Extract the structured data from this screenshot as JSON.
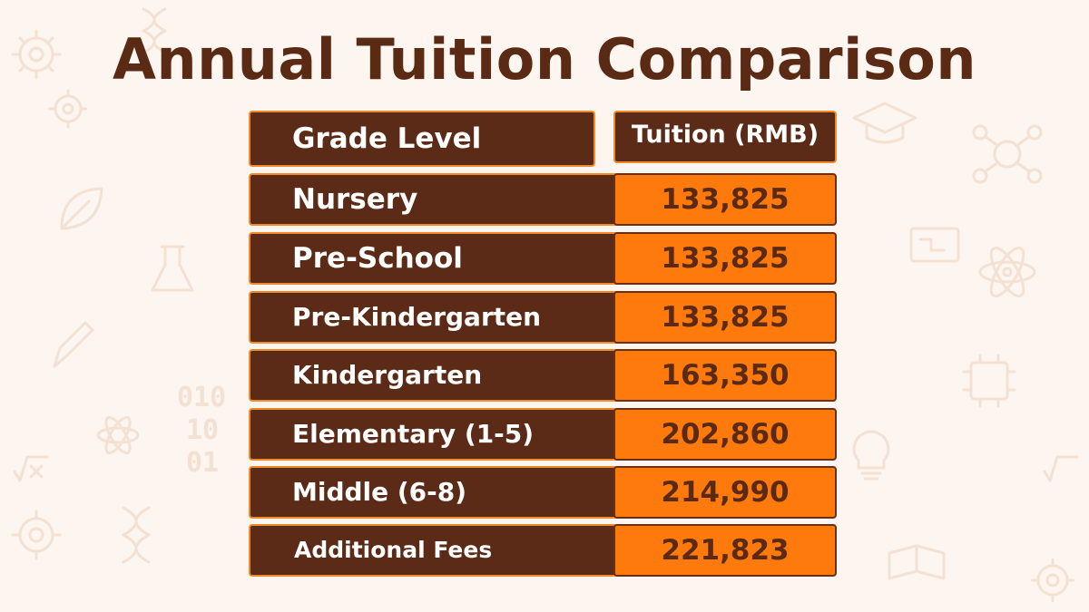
{
  "title": "Annual Tuition Comparison",
  "table": {
    "header": {
      "grade_label": "Grade Level",
      "tuition_label": "Tuition (RMB)"
    },
    "rows": [
      {
        "grade": "Nursery",
        "tuition": "133,825"
      },
      {
        "grade": "Pre-School",
        "tuition": "133,825"
      },
      {
        "grade": "Pre-Kindergarten",
        "tuition": "133,825"
      },
      {
        "grade": "Kindergarten",
        "tuition": "163,350"
      },
      {
        "grade": "Elementary (1-5)",
        "tuition": "202,860"
      },
      {
        "grade": "Middle (6-8)",
        "tuition": "214,990"
      },
      {
        "grade": "Additional Fees",
        "tuition": "221,823"
      }
    ]
  },
  "colors": {
    "background": "#fdf5ef",
    "title": "#5a2a14",
    "label_cell": "#5c2b17",
    "value_cell": "#ff7a0c",
    "accent_border": "#f08a2c"
  },
  "background_icons": [
    "gear-icon",
    "flask-icon",
    "atom-icon",
    "binary-digits-icon",
    "lightbulb-icon",
    "graduation-cap-icon",
    "network-icon",
    "dna-icon",
    "ai-chip-icon",
    "formula-icon"
  ]
}
